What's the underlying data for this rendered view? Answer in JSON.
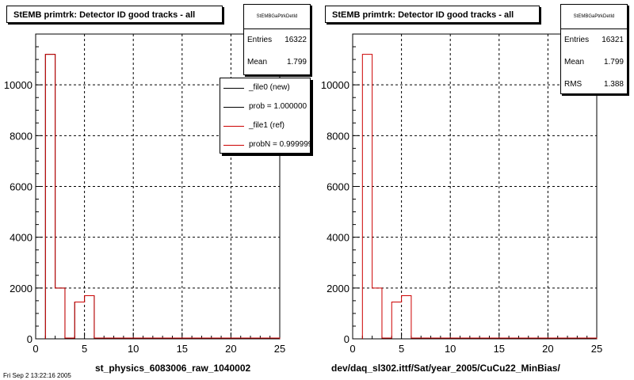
{
  "chart_data": [
    {
      "type": "bar",
      "title": "StEMB primtrk: Detector ID good tracks - all",
      "xlabel": "st_physics_6083006_raw_1040002",
      "xlim": [
        0,
        25
      ],
      "ylim": [
        0,
        12000
      ],
      "xticks": [
        0,
        5,
        10,
        15,
        20,
        25
      ],
      "yticks": [
        0,
        2000,
        4000,
        6000,
        8000,
        10000
      ],
      "grid": true,
      "bins": [
        1,
        2,
        3,
        4,
        5,
        6,
        7,
        8,
        9,
        10,
        11,
        12,
        13,
        14,
        15,
        16,
        17,
        18,
        19,
        20,
        21,
        22,
        23,
        24
      ],
      "series": [
        {
          "name": "_file0 (new)",
          "color": "#000000",
          "values": [
            11200,
            2000,
            0,
            1450,
            1700,
            0,
            0,
            0,
            0,
            0,
            0,
            0,
            0,
            0,
            0,
            0,
            0,
            0,
            0,
            0,
            0,
            0,
            0,
            0
          ]
        },
        {
          "name": "_file1 (ref)",
          "color": "#cc0000",
          "values": [
            11200,
            2000,
            0,
            1450,
            1700,
            0,
            0,
            0,
            0,
            0,
            0,
            0,
            0,
            0,
            0,
            0,
            0,
            0,
            0,
            0,
            0,
            0,
            0,
            0
          ]
        }
      ],
      "stats": {
        "name": "StEMBGaPtrkDetId",
        "entries": "16322",
        "mean": "1.799"
      },
      "legend": [
        {
          "label": "_file0 (new)",
          "color": "#000000"
        },
        {
          "label": "prob = 1.000000",
          "color": "#000000"
        },
        {
          "label": "_file1 (ref)",
          "color": "#cc0000"
        },
        {
          "label": "probN = 0.999999",
          "color": "#cc0000"
        }
      ]
    },
    {
      "type": "bar",
      "title": "StEMB primtrk: Detector ID good tracks - all",
      "xlabel": "dev/daq_sl302.ittf/Sat/year_2005/CuCu22_MinBias/",
      "xlim": [
        0,
        25
      ],
      "ylim": [
        0,
        12000
      ],
      "xticks": [
        0,
        5,
        10,
        15,
        20,
        25
      ],
      "yticks": [
        0,
        2000,
        4000,
        6000,
        8000,
        10000
      ],
      "grid": true,
      "bins": [
        1,
        2,
        3,
        4,
        5,
        6,
        7,
        8,
        9,
        10,
        11,
        12,
        13,
        14,
        15,
        16,
        17,
        18,
        19,
        20,
        21,
        22,
        23,
        24
      ],
      "series": [
        {
          "color": "#cc0000",
          "values": [
            11200,
            2000,
            0,
            1450,
            1700,
            0,
            0,
            0,
            0,
            0,
            0,
            0,
            0,
            0,
            0,
            0,
            0,
            0,
            0,
            0,
            0,
            0,
            0,
            0
          ]
        }
      ],
      "stats": {
        "name": "StEMBGaPtrkDetId",
        "entries": "16321",
        "mean": "1.799",
        "rms": "1.388"
      }
    }
  ],
  "footer": "Fri Sep  2 13:22:16 2005"
}
